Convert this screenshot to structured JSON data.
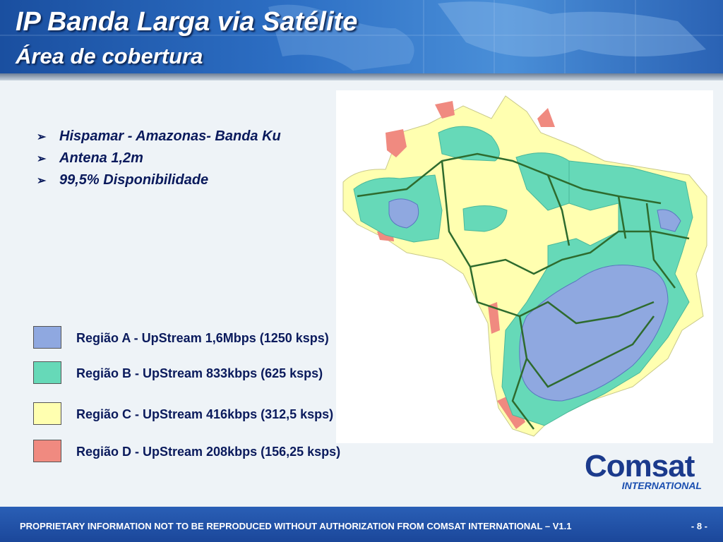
{
  "header": {
    "title": "IP Banda Larga via Satélite",
    "subtitle": "Área de cobertura"
  },
  "bullets": [
    "Hispamar - Amazonas- Banda Ku",
    "Antena 1,2m",
    "99,5% Disponibilidade"
  ],
  "legend": [
    {
      "label": "Região A - UpStream 1,6Mbps (1250 ksps)",
      "color": "#8fa8e0"
    },
    {
      "label": "Região B - UpStream 833kbps (625 ksps)",
      "color": "#66d9b8"
    },
    {
      "label": "Região C - UpStream 416kbps (312,5 ksps)",
      "color": "#ffffb0"
    },
    {
      "label": "Região D - UpStream 208kbps (156,25 ksps)",
      "color": "#f08a80"
    }
  ],
  "logo": {
    "name": "Comsat",
    "subname": "INTERNATIONAL"
  },
  "footer": {
    "text": "PROPRIETARY INFORMATION NOT TO BE REPRODUCED WITHOUT AUTHORIZATION FROM COMSAT INTERNATIONAL – V1.1",
    "page": "- 8 -"
  }
}
